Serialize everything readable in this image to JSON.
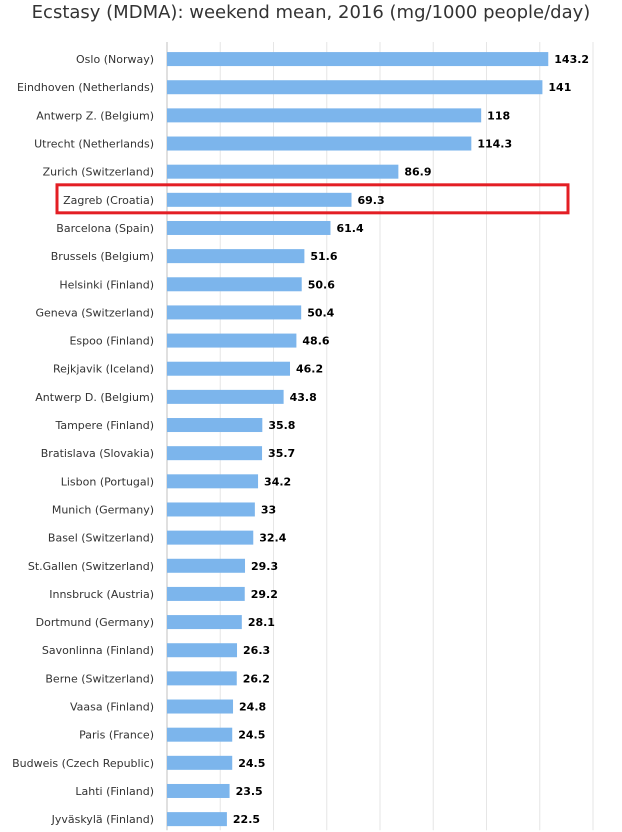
{
  "chart_data": {
    "type": "bar",
    "orientation": "horizontal",
    "title": "Ecstasy (MDMA): weekend mean, 2016 (mg/1000 people/day)",
    "xlabel": "",
    "ylabel": "",
    "xlim": [
      0,
      160
    ],
    "grid": true,
    "highlighted_category": "Zagreb (Croatia)",
    "bar_color": "#7cb5ec",
    "highlight_color": "#e31e24",
    "categories": [
      "Oslo (Norway)",
      "Eindhoven (Netherlands)",
      "Antwerp Z. (Belgium)",
      "Utrecht (Netherlands)",
      "Zurich (Switzerland)",
      "Zagreb (Croatia)",
      "Barcelona (Spain)",
      "Brussels (Belgium)",
      "Helsinki (Finland)",
      "Geneva (Switzerland)",
      "Espoo (Finland)",
      "Rejkjavik (Iceland)",
      "Antwerp D. (Belgium)",
      "Tampere (Finland)",
      "Bratislava (Slovakia)",
      "Lisbon (Portugal)",
      "Munich (Germany)",
      "Basel (Switzerland)",
      "St.Gallen (Switzerland)",
      "Innsbruck (Austria)",
      "Dortmund (Germany)",
      "Savonlinna (Finland)",
      "Berne (Switzerland)",
      "Vaasa (Finland)",
      "Paris (France)",
      "Budweis (Czech Republic)",
      "Lahti (Finland)",
      "Jyväskylä (Finland)"
    ],
    "values": [
      143.2,
      141,
      118,
      114.3,
      86.9,
      69.3,
      61.4,
      51.6,
      50.6,
      50.4,
      48.6,
      46.2,
      43.8,
      35.8,
      35.7,
      34.2,
      33,
      32.4,
      29.3,
      29.2,
      28.1,
      26.3,
      26.2,
      24.8,
      24.5,
      24.5,
      23.5,
      22.5
    ]
  }
}
